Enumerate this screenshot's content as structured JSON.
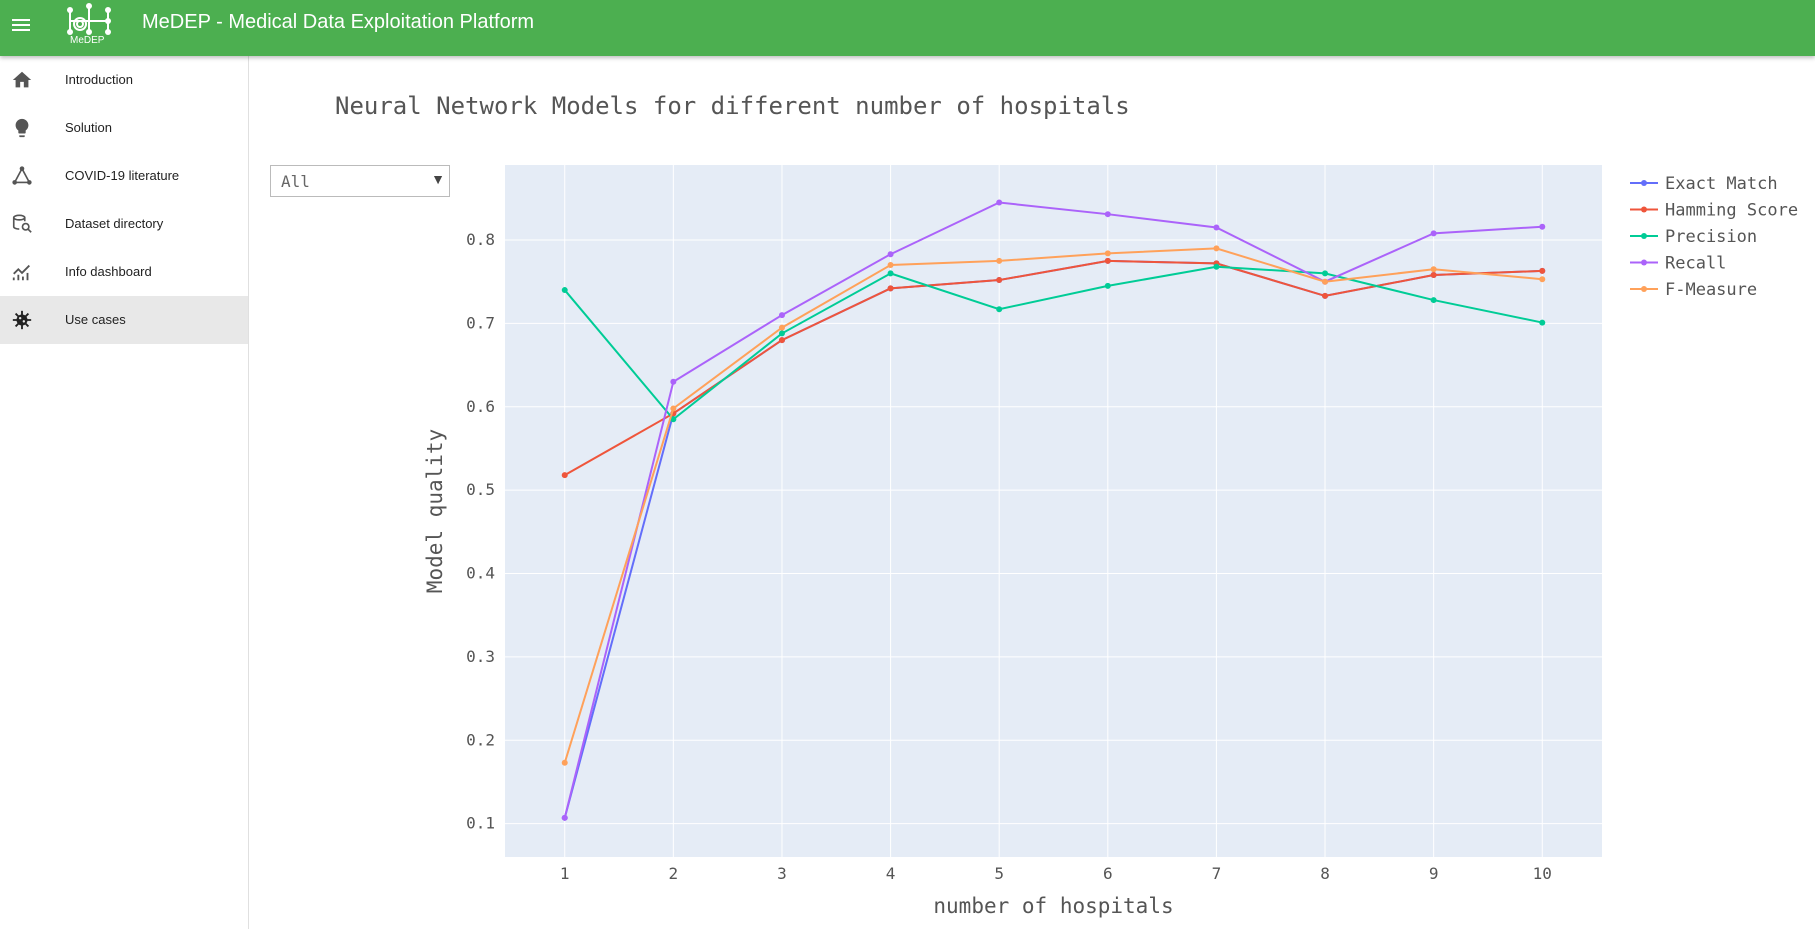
{
  "app": {
    "title": "MeDEP - Medical Data Exploitation Platform",
    "logo_text": "MeDEP"
  },
  "sidebar": {
    "items": [
      {
        "label": "Introduction",
        "icon": "home-icon"
      },
      {
        "label": "Solution",
        "icon": "lightbulb-icon"
      },
      {
        "label": "COVID-19 literature",
        "icon": "graph-icon"
      },
      {
        "label": "Dataset directory",
        "icon": "database-search-icon"
      },
      {
        "label": "Info dashboard",
        "icon": "chart-icon"
      },
      {
        "label": "Use cases",
        "icon": "virus-icon",
        "active": true
      }
    ]
  },
  "filter": {
    "value": "All"
  },
  "colors": {
    "appbar": "#4caf50",
    "plot_bg": "#e5ecf6"
  },
  "chart_data": {
    "type": "line",
    "title": "Neural Network Models for different number of hospitals",
    "xlabel": "number of hospitals",
    "ylabel": "Model quality",
    "x": [
      1,
      2,
      3,
      4,
      5,
      6,
      7,
      8,
      9,
      10
    ],
    "xlim": [
      0.45,
      10.55
    ],
    "ylim": [
      0.06,
      0.89
    ],
    "yticks": [
      0.1,
      0.2,
      0.3,
      0.4,
      0.5,
      0.6,
      0.7,
      0.8
    ],
    "ytick_labels": [
      "0.1",
      "0.2",
      "0.3",
      "0.4",
      "0.5",
      "0.6",
      "0.7",
      "0.8"
    ],
    "xtick_labels": [
      "1",
      "2",
      "3",
      "4",
      "5",
      "6",
      "7",
      "8",
      "9",
      "10"
    ],
    "grid": true,
    "legend_position": "top-right",
    "series": [
      {
        "name": "Exact Match",
        "color": "#636efa",
        "values": [
          0.107,
          0.592,
          0.68,
          0.742,
          0.752,
          0.775,
          0.772,
          0.733,
          0.758,
          0.763
        ]
      },
      {
        "name": "Hamming Score",
        "color": "#ef553b",
        "values": [
          0.518,
          0.592,
          0.68,
          0.742,
          0.752,
          0.775,
          0.772,
          0.733,
          0.758,
          0.763
        ]
      },
      {
        "name": "Precision",
        "color": "#00cc96",
        "values": [
          0.74,
          0.585,
          0.688,
          0.76,
          0.717,
          0.745,
          0.768,
          0.76,
          0.728,
          0.701
        ]
      },
      {
        "name": "Recall",
        "color": "#ab63fa",
        "values": [
          0.107,
          0.63,
          0.71,
          0.783,
          0.845,
          0.831,
          0.815,
          0.75,
          0.808,
          0.816
        ]
      },
      {
        "name": "F-Measure",
        "color": "#ffa15a",
        "values": [
          0.173,
          0.598,
          0.695,
          0.77,
          0.775,
          0.784,
          0.79,
          0.75,
          0.765,
          0.753
        ]
      }
    ]
  }
}
